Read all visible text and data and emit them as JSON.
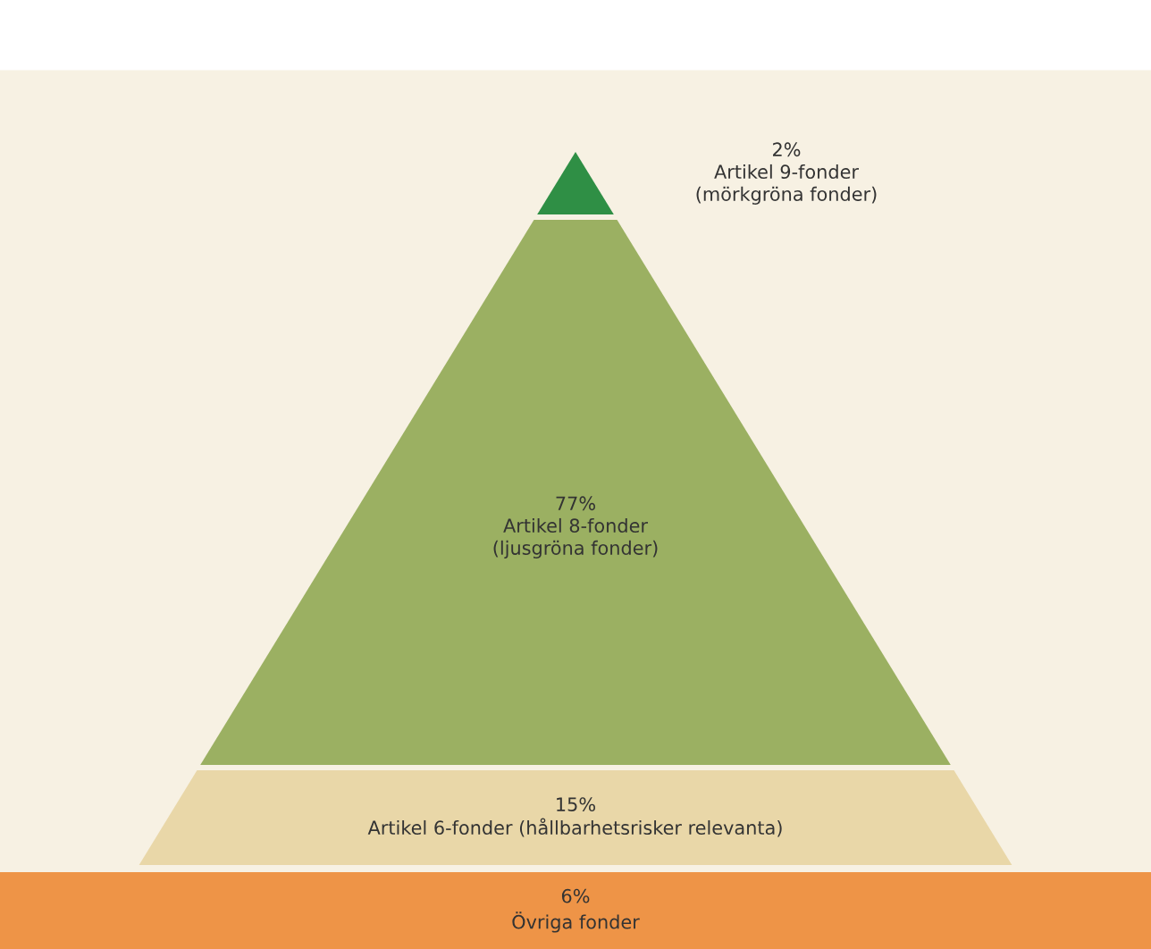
{
  "chart_data": {
    "type": "other",
    "categories": [
      "Artikel 9-fonder\n(mörkgröna fonder)",
      "Artikel 8-fonder\n(ljusgröna fonder)",
      "Artikel 6-fonder (hållbarhetsrisker relevanta)",
      "Övriga fonder"
    ],
    "values": [
      2,
      77,
      15,
      6
    ],
    "value_labels": [
      "2%",
      "77%",
      "15%",
      "6%"
    ],
    "colors": [
      "#2f8f45",
      "#9bb062",
      "#e9d7a8",
      "#ee9447"
    ]
  }
}
